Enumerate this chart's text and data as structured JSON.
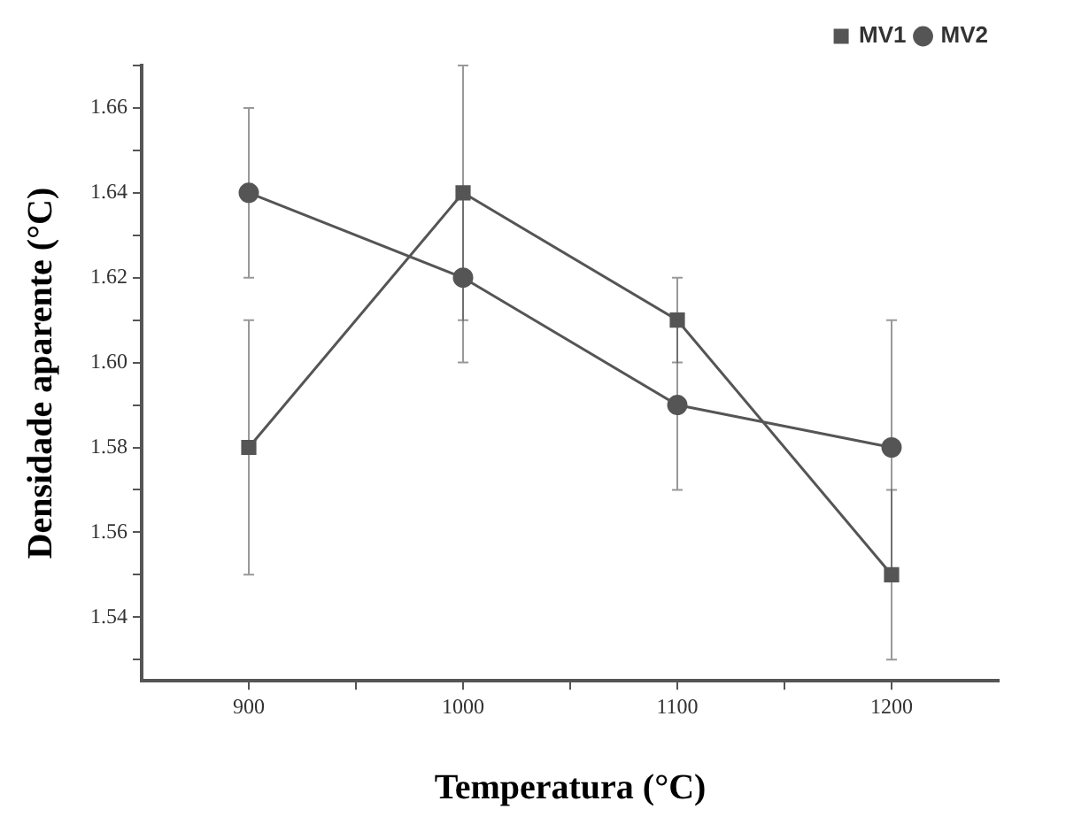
{
  "chart_data": {
    "type": "line",
    "xlabel": "Temperatura (°C)",
    "ylabel": "Densidade aparente (°C)",
    "x": [
      900,
      1000,
      1100,
      1200
    ],
    "series": [
      {
        "name": "MV1",
        "color": "#555555",
        "marker": "square",
        "values": [
          1.58,
          1.64,
          1.61,
          1.55
        ],
        "errors": [
          0.03,
          0.03,
          0.01,
          0.02
        ]
      },
      {
        "name": "MV2",
        "color": "#555555",
        "marker": "circle",
        "values": [
          1.64,
          1.62,
          1.59,
          1.58
        ],
        "errors": [
          0.02,
          0.02,
          0.02,
          0.03
        ]
      }
    ],
    "xlim": [
      850,
      1250
    ],
    "xticks": [
      900,
      {
        "value": 950,
        "label": null
      },
      1000,
      {
        "value": 1050,
        "label": null
      },
      1100,
      {
        "value": 1150,
        "label": null
      },
      1200
    ],
    "ylim": [
      1.525,
      1.67
    ],
    "yticks": [
      {
        "value": 1.53,
        "label": null
      },
      1.54,
      {
        "value": 1.55,
        "label": null
      },
      1.56,
      {
        "value": 1.57,
        "label": null
      },
      1.58,
      {
        "value": 1.59,
        "label": null
      },
      {
        "value": 1.6,
        "label": "1.60"
      },
      {
        "value": 1.61,
        "label": null
      },
      1.62,
      {
        "value": 1.63,
        "label": null
      },
      1.64,
      {
        "value": 1.65,
        "label": null
      },
      1.66,
      {
        "value": 1.67,
        "label": null
      }
    ],
    "grid": false,
    "legend": "top right",
    "line_style": "solid"
  }
}
